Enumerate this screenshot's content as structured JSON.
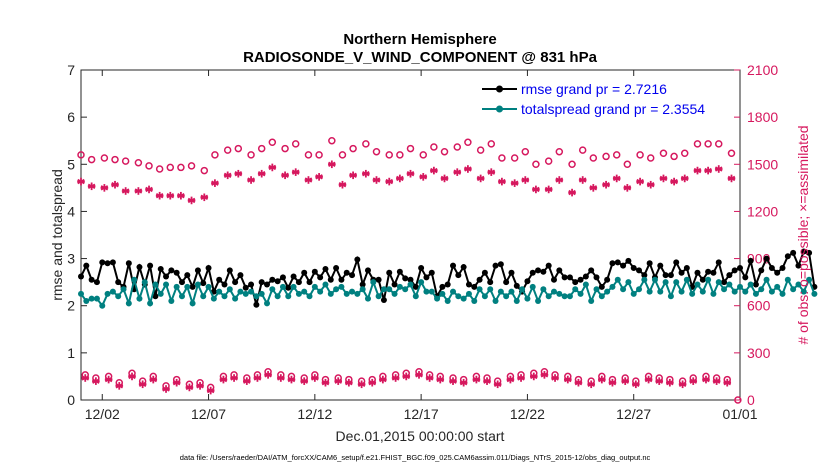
{
  "chart_data": {
    "type": "line",
    "title": "Northern Hemisphere",
    "subtitle": "RADIOSONDE_V_WIND_COMPONENT @ 831 hPa",
    "xlabel": "Dec.01,2015 00:00:00 start",
    "ylabel_left": "rmse and totalspread",
    "ylabel_right": "# of obs: o=possible; ×=assimilated",
    "xlim": [
      0,
      31
    ],
    "ylim_left": [
      0,
      7
    ],
    "ylim_right": [
      0,
      2100
    ],
    "x_ticks": [
      {
        "value": 1,
        "label": "12/02"
      },
      {
        "value": 6,
        "label": "12/07"
      },
      {
        "value": 11,
        "label": "12/12"
      },
      {
        "value": 16,
        "label": "12/17"
      },
      {
        "value": 21,
        "label": "12/22"
      },
      {
        "value": 26,
        "label": "12/27"
      },
      {
        "value": 31,
        "label": "01/01"
      }
    ],
    "y_ticks_left": [
      "0",
      "1",
      "2",
      "3",
      "4",
      "5",
      "6",
      "7"
    ],
    "y_ticks_right": [
      "0",
      "300",
      "600",
      "900",
      "1200",
      "1500",
      "1800",
      "2100"
    ],
    "legend": [
      {
        "label": "rmse grand pr = 2.7216",
        "color": "#000000"
      },
      {
        "label": "totalspread grand pr = 2.3554",
        "color": "#008080"
      }
    ],
    "legend_position": "top-right",
    "step_days": 0.25,
    "series": [
      {
        "name": "rmse",
        "axis": "left",
        "color": "#000000",
        "values": [
          2.62,
          2.85,
          2.55,
          2.5,
          2.92,
          2.9,
          2.92,
          2.5,
          2.4,
          2.9,
          2.35,
          2.82,
          2.45,
          2.85,
          2.2,
          2.78,
          2.62,
          2.75,
          2.7,
          2.5,
          2.65,
          2.4,
          2.75,
          2.48,
          2.8,
          2.3,
          2.55,
          2.45,
          2.75,
          2.5,
          2.65,
          2.38,
          2.45,
          2.02,
          2.5,
          2.45,
          2.55,
          2.52,
          2.6,
          2.38,
          2.62,
          2.5,
          2.7,
          2.5,
          2.72,
          2.6,
          2.78,
          2.55,
          2.8,
          2.55,
          2.7,
          2.65,
          2.98,
          2.45,
          2.75,
          2.55,
          2.55,
          2.12,
          2.7,
          2.45,
          2.72,
          2.58,
          2.55,
          2.4,
          2.8,
          2.6,
          2.7,
          2.2,
          2.4,
          2.45,
          2.85,
          2.65,
          2.82,
          2.45,
          2.4,
          2.55,
          2.7,
          2.5,
          2.85,
          2.88,
          2.5,
          2.7,
          2.42,
          2.3,
          2.52,
          2.7,
          2.75,
          2.72,
          2.85,
          2.55,
          2.75,
          2.6,
          2.6,
          2.5,
          2.55,
          2.62,
          2.75,
          2.6,
          2.4,
          2.55,
          2.9,
          2.92,
          2.85,
          2.95,
          2.8,
          2.75,
          2.65,
          2.9,
          2.6,
          2.85,
          2.65,
          2.65,
          2.92,
          2.7,
          2.8,
          2.4,
          2.7,
          2.55,
          2.72,
          2.7,
          2.92,
          2.5,
          2.65,
          2.75,
          2.8,
          2.6,
          2.95,
          2.45,
          2.75,
          3.0,
          2.8,
          2.7,
          2.8,
          3.05,
          3.12,
          2.85,
          3.15,
          3.12,
          2.4
        ]
      },
      {
        "name": "totalspread",
        "axis": "left",
        "color": "#008080",
        "values": [
          2.25,
          2.1,
          2.15,
          2.15,
          2.0,
          2.25,
          2.3,
          2.2,
          2.35,
          2.05,
          2.55,
          2.15,
          2.5,
          2.05,
          2.45,
          2.25,
          2.45,
          2.1,
          2.4,
          2.2,
          2.4,
          2.05,
          2.45,
          2.2,
          2.4,
          2.15,
          2.3,
          2.2,
          2.35,
          2.15,
          2.3,
          2.25,
          2.3,
          2.2,
          2.25,
          2.05,
          2.35,
          2.2,
          2.4,
          2.2,
          2.4,
          2.25,
          2.3,
          2.2,
          2.4,
          2.3,
          2.45,
          2.25,
          2.35,
          2.4,
          2.25,
          2.3,
          2.25,
          2.35,
          2.15,
          2.5,
          2.2,
          2.35,
          2.35,
          2.25,
          2.4,
          2.35,
          2.45,
          2.2,
          2.5,
          2.3,
          2.3,
          2.15,
          2.25,
          2.1,
          2.3,
          2.2,
          2.15,
          2.25,
          2.1,
          2.35,
          2.2,
          2.35,
          2.1,
          2.3,
          2.2,
          2.3,
          2.1,
          2.35,
          2.15,
          2.4,
          2.1,
          2.35,
          2.2,
          2.3,
          2.25,
          2.2,
          2.2,
          2.35,
          2.25,
          2.45,
          2.1,
          2.35,
          2.2,
          2.3,
          2.4,
          2.55,
          2.35,
          2.5,
          2.25,
          2.35,
          2.55,
          2.3,
          2.55,
          2.3,
          2.5,
          2.2,
          2.5,
          2.3,
          2.55,
          2.25,
          2.45,
          2.3,
          2.55,
          2.25,
          2.5,
          2.35,
          2.45,
          2.3,
          2.4,
          2.3,
          2.45,
          2.25,
          2.35,
          2.55,
          2.3,
          2.4,
          2.25,
          2.55,
          2.35,
          2.45,
          2.3,
          2.55,
          2.25
        ]
      },
      {
        "name": "possible",
        "axis": "right",
        "marker": "o",
        "color": "#d6185e",
        "x": [
          0,
          0.5,
          1.1,
          1.6,
          2.1,
          2.7,
          3.2,
          3.7,
          4.2,
          4.7,
          5.2,
          5.8,
          6.3,
          6.9,
          7.4,
          8.0,
          8.5,
          9.0,
          9.6,
          10.1,
          10.7,
          11.2,
          11.8,
          12.3,
          12.8,
          13.4,
          13.9,
          14.5,
          15.0,
          15.5,
          16.1,
          16.6,
          17.1,
          17.7,
          18.2,
          18.8,
          19.3,
          19.8,
          20.4,
          20.9,
          21.4,
          22.0,
          22.5,
          23.1,
          23.6,
          24.1,
          24.7,
          25.2,
          25.7,
          26.3,
          26.8,
          27.4,
          27.9,
          28.4,
          29.0,
          29.5,
          30.0,
          30.6
        ],
        "values": [
          1560,
          1530,
          1540,
          1530,
          1520,
          1510,
          1490,
          1470,
          1480,
          1480,
          1490,
          1460,
          1560,
          1590,
          1600,
          1560,
          1600,
          1640,
          1600,
          1630,
          1560,
          1560,
          1650,
          1560,
          1600,
          1630,
          1580,
          1560,
          1560,
          1600,
          1560,
          1610,
          1580,
          1610,
          1640,
          1590,
          1630,
          1540,
          1540,
          1580,
          1500,
          1520,
          1580,
          1500,
          1590,
          1540,
          1550,
          1560,
          1500,
          1560,
          1540,
          1570,
          1550,
          1570,
          1630,
          1630,
          1630,
          1570
        ]
      },
      {
        "name": "assimilated",
        "axis": "right",
        "marker": "*",
        "color": "#d6185e",
        "x": [
          0,
          0.5,
          1.1,
          1.6,
          2.1,
          2.7,
          3.2,
          3.7,
          4.2,
          4.7,
          5.2,
          5.8,
          6.3,
          6.9,
          7.4,
          8.0,
          8.5,
          9.0,
          9.6,
          10.1,
          10.7,
          11.2,
          11.8,
          12.3,
          12.8,
          13.4,
          13.9,
          14.5,
          15.0,
          15.5,
          16.1,
          16.6,
          17.1,
          17.7,
          18.2,
          18.8,
          19.3,
          19.8,
          20.4,
          20.9,
          21.4,
          22.0,
          22.5,
          23.1,
          23.6,
          24.1,
          24.7,
          25.2,
          25.7,
          26.3,
          26.8,
          27.4,
          27.9,
          28.4,
          29.0,
          29.5,
          30.0,
          30.6
        ],
        "values": [
          1390,
          1360,
          1350,
          1370,
          1330,
          1330,
          1340,
          1300,
          1300,
          1300,
          1270,
          1290,
          1380,
          1430,
          1440,
          1400,
          1440,
          1480,
          1430,
          1450,
          1400,
          1420,
          1500,
          1370,
          1430,
          1440,
          1400,
          1390,
          1410,
          1440,
          1420,
          1460,
          1410,
          1450,
          1470,
          1410,
          1450,
          1390,
          1380,
          1400,
          1340,
          1340,
          1400,
          1320,
          1400,
          1350,
          1370,
          1410,
          1350,
          1390,
          1370,
          1410,
          1390,
          1410,
          1460,
          1460,
          1470,
          1410
        ]
      },
      {
        "name": "possible_low",
        "axis": "right",
        "marker": "o",
        "color": "#d6185e",
        "x": [
          0.2,
          0.7,
          1.3,
          1.8,
          2.4,
          2.9,
          3.4,
          4.0,
          4.5,
          5.1,
          5.6,
          6.1,
          6.7,
          7.2,
          7.8,
          8.3,
          8.8,
          9.4,
          9.9,
          10.5,
          11.0,
          11.5,
          12.1,
          12.6,
          13.2,
          13.7,
          14.2,
          14.8,
          15.3,
          15.9,
          16.4,
          16.9,
          17.5,
          18.0,
          18.6,
          19.1,
          19.6,
          20.2,
          20.7,
          21.3,
          21.8,
          22.3,
          22.9,
          23.4,
          24.0,
          24.5,
          25.0,
          25.6,
          26.1,
          26.7,
          27.2,
          27.7,
          28.3,
          28.8,
          29.4,
          29.9,
          30.4,
          30.9
        ],
        "values": [
          160,
          140,
          150,
          110,
          170,
          120,
          150,
          90,
          130,
          100,
          110,
          80,
          150,
          160,
          140,
          160,
          180,
          160,
          150,
          140,
          160,
          130,
          140,
          130,
          120,
          130,
          150,
          160,
          170,
          180,
          160,
          150,
          140,
          130,
          150,
          140,
          120,
          150,
          160,
          170,
          180,
          160,
          150,
          130,
          120,
          150,
          130,
          140,
          120,
          150,
          140,
          130,
          120,
          140,
          150,
          140,
          130,
          0
        ]
      },
      {
        "name": "assimilated_low",
        "axis": "right",
        "marker": "*",
        "color": "#d6185e",
        "x": [
          0.2,
          0.7,
          1.3,
          1.8,
          2.4,
          2.9,
          3.4,
          4.0,
          4.5,
          5.1,
          5.6,
          6.1,
          6.7,
          7.2,
          7.8,
          8.3,
          8.8,
          9.4,
          9.9,
          10.5,
          11.0,
          11.5,
          12.1,
          12.6,
          13.2,
          13.7,
          14.2,
          14.8,
          15.3,
          15.9,
          16.4,
          16.9,
          17.5,
          18.0,
          18.6,
          19.1,
          19.6,
          20.2,
          20.7,
          21.3,
          21.8,
          22.3,
          22.9,
          23.4,
          24.0,
          24.5,
          25.0,
          25.6,
          26.1,
          26.7,
          27.2,
          27.7,
          28.3,
          28.8,
          29.4,
          29.9,
          30.4
        ],
        "values": [
          140,
          120,
          130,
          90,
          150,
          100,
          130,
          70,
          110,
          80,
          90,
          60,
          130,
          140,
          120,
          140,
          160,
          140,
          130,
          120,
          140,
          110,
          120,
          110,
          100,
          110,
          130,
          140,
          150,
          160,
          140,
          130,
          120,
          110,
          130,
          120,
          100,
          130,
          140,
          150,
          160,
          140,
          130,
          110,
          100,
          130,
          110,
          120,
          100,
          130,
          120,
          110,
          100,
          120,
          130,
          120,
          110
        ]
      }
    ]
  },
  "footer": "data file: /Users/raeder/DAI/ATM_forcXX/CAM6_setup/f.e21.FHIST_BGC.f09_025.CAM6assim.011/Diags_NTrS_2015-12/obs_diag_output.nc"
}
